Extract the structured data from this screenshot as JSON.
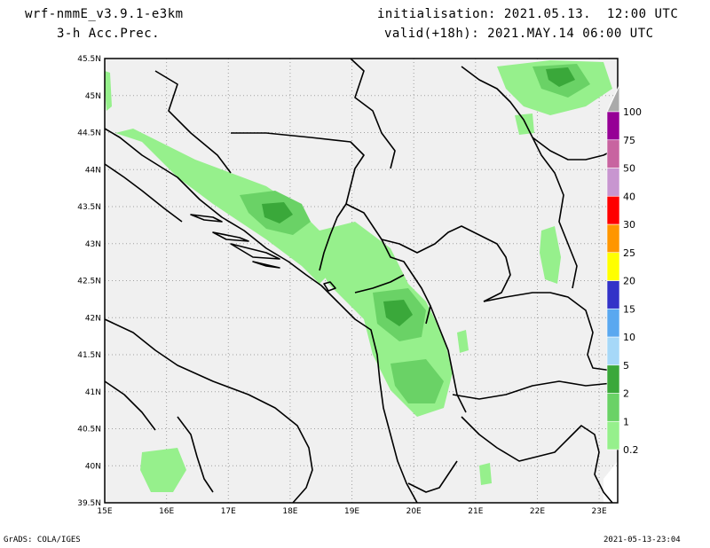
{
  "header": {
    "model": "wrf-nmmE_v3.9.1-e3km",
    "field": "3-h Acc.Prec.",
    "init": "initialisation: 2021.05.13.  12:00 UTC",
    "valid": "valid(+18h): 2021.MAY.14 06:00 UTC"
  },
  "footer": {
    "credit": "GrADS: COLA/IGES",
    "timestamp": "2021-05-13-23:04"
  },
  "axes": {
    "lat_labels": [
      "45.5N",
      "45N",
      "44.5N",
      "44N",
      "43.5N",
      "43N",
      "42.5N",
      "42N",
      "41.5N",
      "41N",
      "40.5N",
      "40N",
      "39.5N"
    ],
    "lon_labels": [
      "15E",
      "16E",
      "17E",
      "18E",
      "19E",
      "20E",
      "21E",
      "22E",
      "23E"
    ]
  },
  "legend": {
    "levels": [
      "0.2",
      "1",
      "2",
      "5",
      "10",
      "15",
      "20",
      "25",
      "30",
      "40",
      "50",
      "75",
      "100"
    ],
    "colors": [
      "#96f08c",
      "#6ad266",
      "#3aa83a",
      "#a6d8f8",
      "#5aa8f0",
      "#3232c8",
      "#ffff00",
      "#ff9600",
      "#ff0000",
      "#c896d0",
      "#c864a0",
      "#960096",
      "#aaaaaa"
    ]
  },
  "colors": {
    "land": "#f0f0f0",
    "border": "#000000",
    "grid": "#a0a0a0"
  }
}
